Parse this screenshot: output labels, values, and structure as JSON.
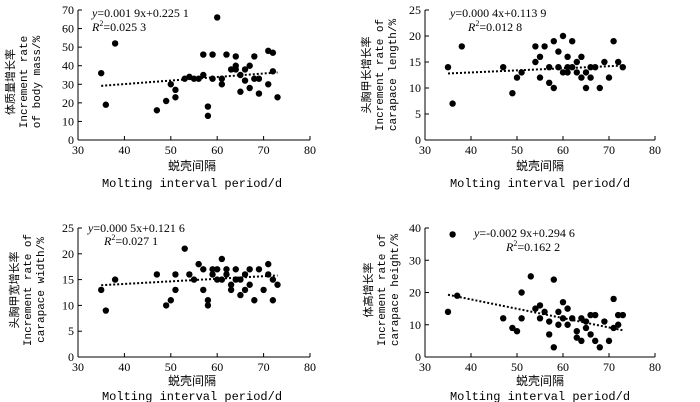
{
  "chart_data": [
    {
      "id": "body-mass",
      "type": "scatter",
      "xlabel_zh": "蜕壳间隔",
      "xlabel_en": "Molting interval period/d",
      "ylabel_zh": "体质量增长率",
      "ylabel_en1": "Increment rate",
      "ylabel_en2": "of body mass/%",
      "equation_y": "y",
      "equation_rest": "=0.001 9x+0.225 1",
      "r2_label": "R",
      "r2_sup": "2",
      "r2_value": "=0.025 3",
      "xlim": [
        30,
        80
      ],
      "ylim": [
        0,
        70
      ],
      "xticks": [
        30,
        40,
        50,
        60,
        70,
        80
      ],
      "yticks": [
        0,
        10,
        20,
        30,
        40,
        50,
        60,
        70
      ],
      "trend": {
        "slope": 0.19,
        "intercept": 22.51
      },
      "points": [
        [
          35,
          36
        ],
        [
          36,
          19
        ],
        [
          38,
          52
        ],
        [
          47,
          16
        ],
        [
          49,
          21
        ],
        [
          50,
          30
        ],
        [
          51,
          27
        ],
        [
          51,
          23
        ],
        [
          53,
          33
        ],
        [
          54,
          34
        ],
        [
          55,
          33
        ],
        [
          56,
          33
        ],
        [
          57,
          35
        ],
        [
          57,
          46
        ],
        [
          58,
          18
        ],
        [
          58,
          13
        ],
        [
          59,
          33
        ],
        [
          59,
          46
        ],
        [
          60,
          66
        ],
        [
          61,
          30
        ],
        [
          61,
          33
        ],
        [
          62,
          46
        ],
        [
          63,
          38
        ],
        [
          64,
          40
        ],
        [
          64,
          45
        ],
        [
          65,
          35
        ],
        [
          65,
          26
        ],
        [
          66,
          32
        ],
        [
          66,
          38
        ],
        [
          67,
          40
        ],
        [
          67,
          28
        ],
        [
          68,
          45
        ],
        [
          68,
          33
        ],
        [
          69,
          33
        ],
        [
          69,
          25
        ],
        [
          71,
          48
        ],
        [
          71,
          30
        ],
        [
          72,
          47
        ],
        [
          72,
          37
        ],
        [
          73,
          23
        ],
        [
          64,
          38
        ]
      ]
    },
    {
      "id": "carapace-length",
      "type": "scatter",
      "xlabel_zh": "蜕壳间隔",
      "xlabel_en": "Molting interval period/d",
      "ylabel_zh": "头胸甲长增长率",
      "ylabel_en1": "Increment rate of",
      "ylabel_en2": "carapace length/%",
      "equation_y": "y",
      "equation_rest": "=0.000 4x+0.113 9",
      "r2_label": "R",
      "r2_sup": "2",
      "r2_value": "=0.012 8",
      "xlim": [
        30,
        80
      ],
      "ylim": [
        0,
        25
      ],
      "xticks": [
        30,
        40,
        50,
        60,
        70,
        80
      ],
      "yticks": [
        0,
        5,
        10,
        15,
        20,
        25
      ],
      "trend": {
        "slope": 0.04,
        "intercept": 11.39
      },
      "points": [
        [
          35,
          14
        ],
        [
          36,
          7
        ],
        [
          38,
          18
        ],
        [
          47,
          14
        ],
        [
          49,
          9
        ],
        [
          50,
          12
        ],
        [
          51,
          13
        ],
        [
          54,
          18
        ],
        [
          54,
          15
        ],
        [
          55,
          12
        ],
        [
          55,
          16
        ],
        [
          56,
          18
        ],
        [
          57,
          11
        ],
        [
          57,
          14
        ],
        [
          58,
          19
        ],
        [
          58,
          10
        ],
        [
          59,
          14
        ],
        [
          59,
          17
        ],
        [
          60,
          20
        ],
        [
          60,
          13
        ],
        [
          61,
          16
        ],
        [
          61,
          14
        ],
        [
          62,
          14
        ],
        [
          62,
          19
        ],
        [
          63,
          13
        ],
        [
          64,
          16
        ],
        [
          64,
          12
        ],
        [
          65,
          13
        ],
        [
          65,
          10
        ],
        [
          66,
          12
        ],
        [
          66,
          14
        ],
        [
          67,
          14
        ],
        [
          68,
          10
        ],
        [
          69,
          15
        ],
        [
          70,
          12
        ],
        [
          71,
          19
        ],
        [
          72,
          15
        ],
        [
          73,
          14
        ],
        [
          63,
          15
        ],
        [
          61,
          13
        ]
      ]
    },
    {
      "id": "carapace-width",
      "type": "scatter",
      "xlabel_zh": "蜕壳间隔",
      "xlabel_en": "Molting interval period/d",
      "ylabel_zh": "头胸甲宽增长率",
      "ylabel_en1": "Increment rate of",
      "ylabel_en2": "carapace width/%",
      "equation_y": "y",
      "equation_rest": "=0.000 5x+0.121 6",
      "r2_label": "R",
      "r2_sup": "2",
      "r2_value": "=0.027 1",
      "xlim": [
        30,
        80
      ],
      "ylim": [
        0,
        25
      ],
      "xticks": [
        30,
        40,
        50,
        60,
        70,
        80
      ],
      "yticks": [
        0,
        5,
        10,
        15,
        20,
        25
      ],
      "trend": {
        "slope": 0.05,
        "intercept": 12.16
      },
      "points": [
        [
          35,
          13
        ],
        [
          36,
          9
        ],
        [
          38,
          15
        ],
        [
          47,
          16
        ],
        [
          49,
          10
        ],
        [
          50,
          11
        ],
        [
          51,
          16
        ],
        [
          51,
          13
        ],
        [
          53,
          21
        ],
        [
          54,
          16
        ],
        [
          55,
          15
        ],
        [
          56,
          18
        ],
        [
          57,
          17
        ],
        [
          57,
          13
        ],
        [
          58,
          11
        ],
        [
          58,
          10
        ],
        [
          59,
          17
        ],
        [
          59,
          16
        ],
        [
          60,
          17
        ],
        [
          60,
          15
        ],
        [
          61,
          19
        ],
        [
          61,
          15
        ],
        [
          62,
          17
        ],
        [
          63,
          13
        ],
        [
          63,
          14
        ],
        [
          64,
          17
        ],
        [
          64,
          15
        ],
        [
          65,
          12
        ],
        [
          65,
          15
        ],
        [
          66,
          16
        ],
        [
          66,
          13
        ],
        [
          67,
          17
        ],
        [
          67,
          14
        ],
        [
          68,
          11
        ],
        [
          69,
          17
        ],
        [
          70,
          13
        ],
        [
          71,
          18
        ],
        [
          71,
          16
        ],
        [
          72,
          15
        ],
        [
          72,
          11
        ],
        [
          73,
          14
        ],
        [
          62,
          16
        ]
      ]
    },
    {
      "id": "body-height",
      "type": "scatter",
      "xlabel_zh": "蜕壳间隔",
      "xlabel_en": "Molting interval period/d",
      "ylabel_zh": "体高增长率",
      "ylabel_en1": "Increment rate of",
      "ylabel_en2": "carapace height/%",
      "equation_y": "y",
      "equation_rest": "=-0.002 9x+0.294 6",
      "r2_label": "R",
      "r2_sup": "2",
      "r2_value": "=0.162 2",
      "xlim": [
        30,
        80
      ],
      "ylim": [
        0,
        40
      ],
      "xticks": [
        30,
        40,
        50,
        60,
        70,
        80
      ],
      "yticks": [
        0,
        10,
        20,
        30,
        40
      ],
      "trend": {
        "slope": -0.29,
        "intercept": 29.46
      },
      "points": [
        [
          35,
          14
        ],
        [
          36,
          38
        ],
        [
          37,
          19
        ],
        [
          47,
          12
        ],
        [
          49,
          9
        ],
        [
          50,
          8
        ],
        [
          51,
          20
        ],
        [
          51,
          12
        ],
        [
          53,
          25
        ],
        [
          54,
          15
        ],
        [
          55,
          12
        ],
        [
          55,
          16
        ],
        [
          56,
          14
        ],
        [
          57,
          7
        ],
        [
          57,
          11
        ],
        [
          58,
          3
        ],
        [
          58,
          24
        ],
        [
          59,
          10
        ],
        [
          59,
          14
        ],
        [
          60,
          17
        ],
        [
          60,
          12
        ],
        [
          61,
          15
        ],
        [
          61,
          10
        ],
        [
          62,
          12
        ],
        [
          63,
          8
        ],
        [
          63,
          6
        ],
        [
          64,
          12
        ],
        [
          64,
          5
        ],
        [
          65,
          9
        ],
        [
          65,
          11
        ],
        [
          66,
          7
        ],
        [
          66,
          13
        ],
        [
          67,
          5
        ],
        [
          67,
          13
        ],
        [
          68,
          3
        ],
        [
          69,
          11
        ],
        [
          70,
          5
        ],
        [
          71,
          18
        ],
        [
          71,
          9
        ],
        [
          72,
          13
        ],
        [
          72,
          10
        ],
        [
          73,
          13
        ]
      ]
    }
  ]
}
